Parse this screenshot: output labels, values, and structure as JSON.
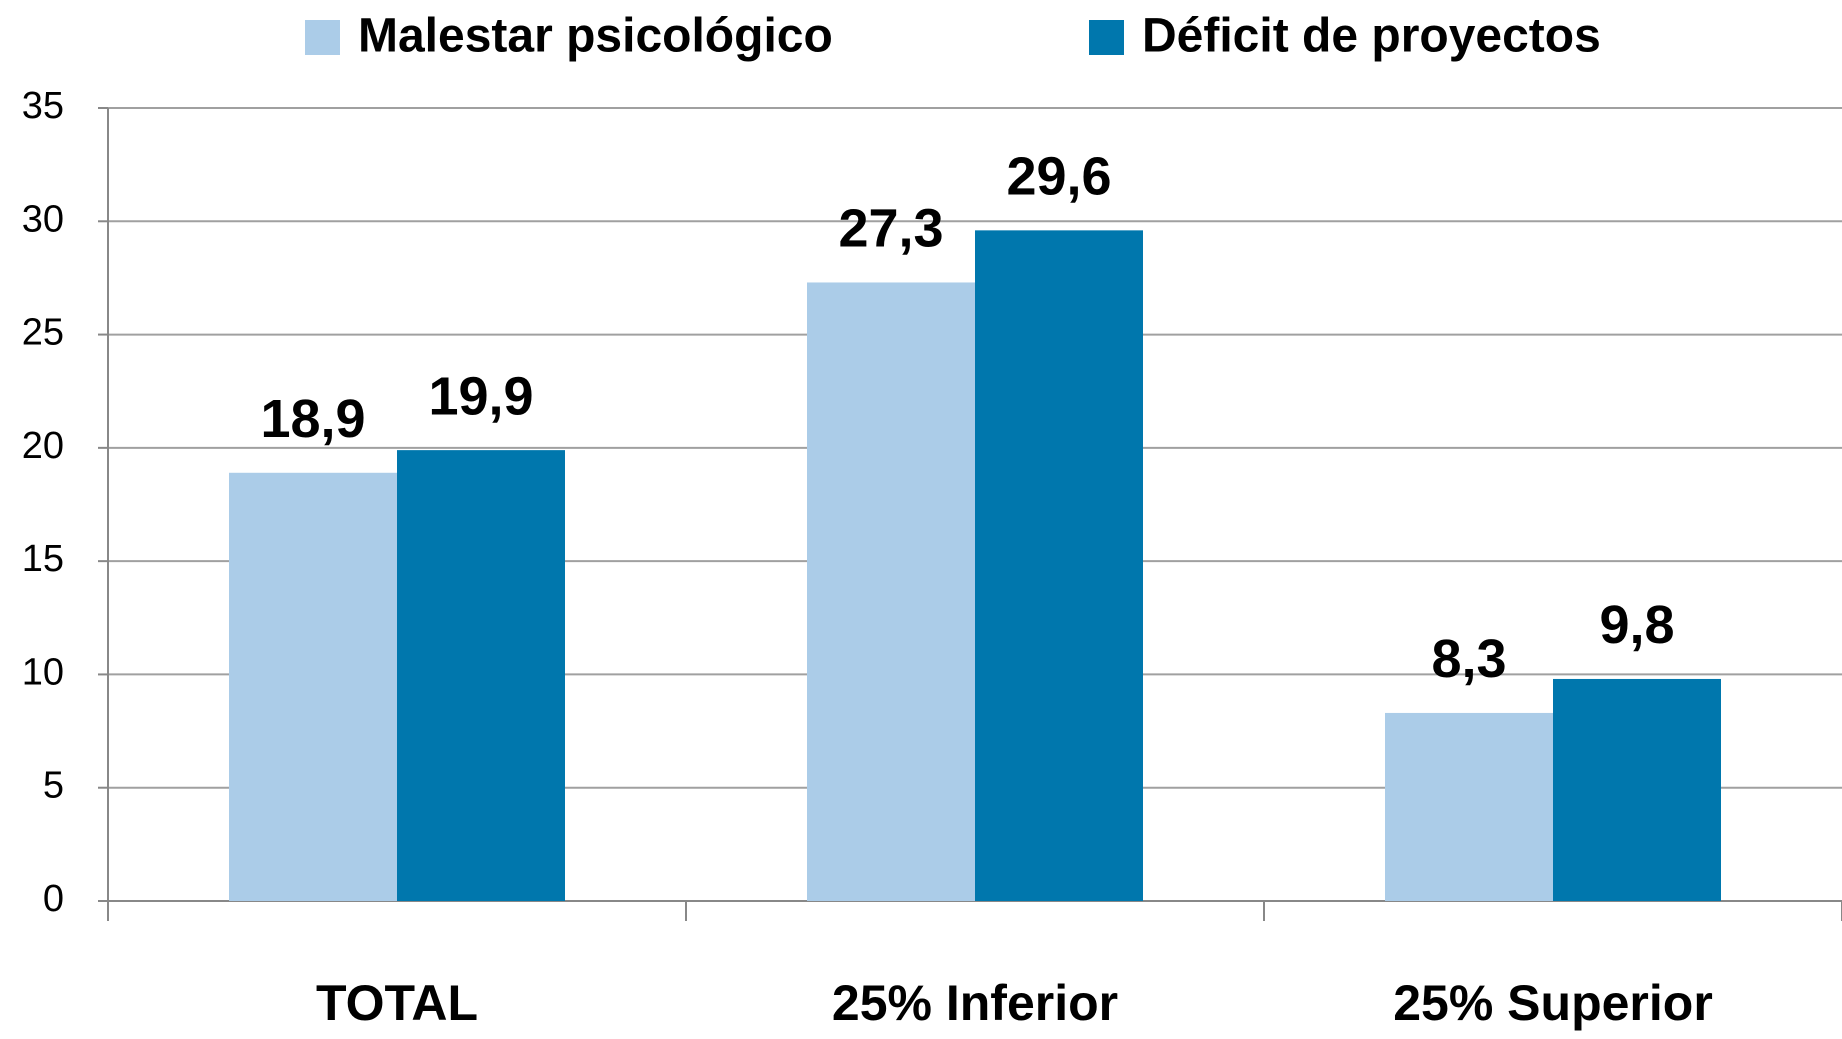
{
  "chart_data": {
    "type": "bar",
    "categories": [
      "TOTAL",
      "25% Inferior",
      "25% Superior"
    ],
    "series": [
      {
        "name": "Malestar psicológico",
        "color": "#abcce8",
        "values": [
          18.9,
          27.3,
          8.3
        ],
        "value_labels": [
          "18,9",
          "27,3",
          "8,3"
        ]
      },
      {
        "name": "Déficit de proyectos",
        "color": "#0077ad",
        "values": [
          19.9,
          29.6,
          9.8
        ],
        "value_labels": [
          "19,9",
          "29,6",
          "9,8"
        ]
      }
    ],
    "ylim": [
      0,
      35
    ],
    "yticks": [
      0,
      5,
      10,
      15,
      20,
      25,
      30,
      35
    ],
    "grid": true,
    "legend": "top"
  }
}
